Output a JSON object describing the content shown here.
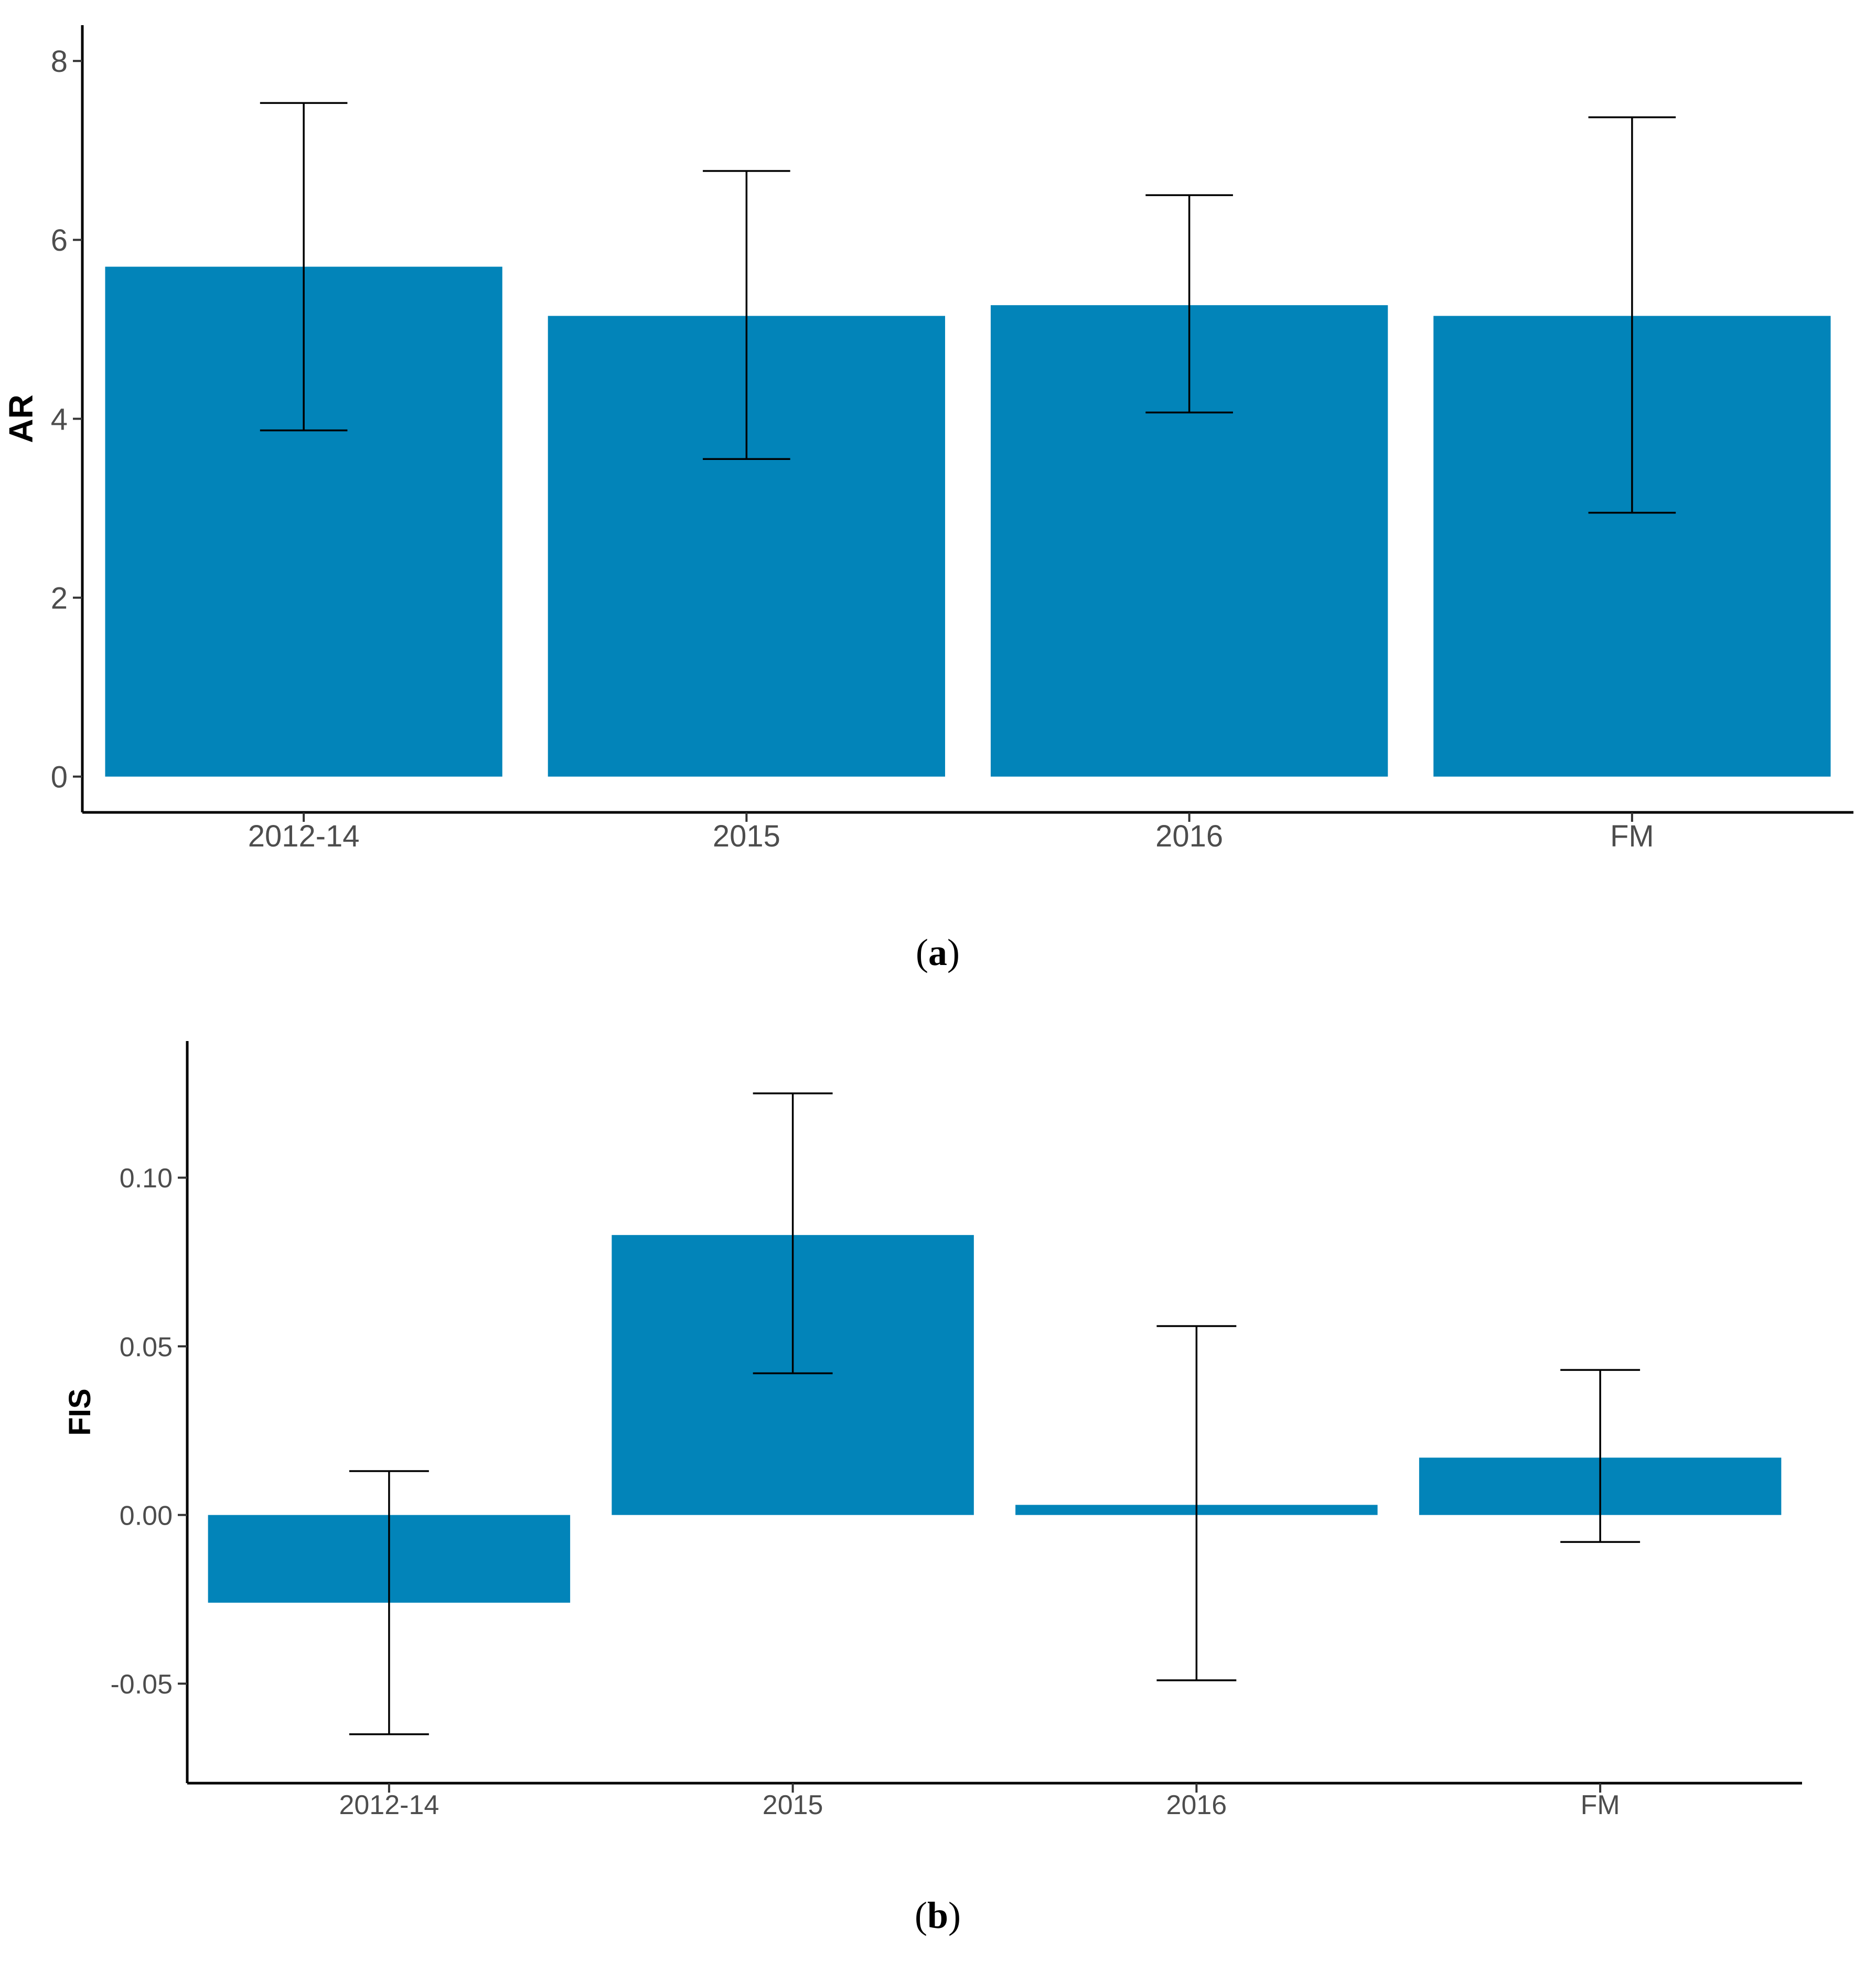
{
  "bar_color": "#0284B9",
  "axis_color": "#000000",
  "tick_text_color": "#4D4D4D",
  "chart_data": [
    {
      "type": "bar",
      "panel": "a",
      "caption_letter": "a",
      "title": "",
      "xlabel": "",
      "ylabel": "AR",
      "categories": [
        "2012-14",
        "2015",
        "2016",
        "FM"
      ],
      "values": [
        5.7,
        5.15,
        5.27,
        5.15
      ],
      "error_low": [
        3.87,
        3.55,
        4.07,
        2.95
      ],
      "error_high": [
        7.53,
        6.77,
        6.5,
        7.37
      ],
      "ylim": [
        -0.4,
        8.4
      ],
      "yticks": [
        0,
        2,
        4,
        6,
        8
      ],
      "ytick_labels": [
        "0",
        "2",
        "4",
        "6",
        "8"
      ],
      "grid": false,
      "legend": "none"
    },
    {
      "type": "bar",
      "panel": "b",
      "caption_letter": "b",
      "title": "",
      "xlabel": "",
      "ylabel": "FIS",
      "categories": [
        "2012-14",
        "2015",
        "2016",
        "FM"
      ],
      "values": [
        -0.026,
        0.083,
        0.003,
        0.017
      ],
      "error_low": [
        -0.065,
        0.042,
        -0.049,
        -0.008
      ],
      "error_high": [
        0.013,
        0.125,
        0.056,
        0.043
      ],
      "ylim": [
        -0.0795,
        0.1405
      ],
      "yticks": [
        -0.05,
        0.0,
        0.05,
        0.1
      ],
      "ytick_labels": [
        "-0.05",
        "0.00",
        "0.05",
        "0.10"
      ],
      "grid": false,
      "legend": "none"
    }
  ]
}
